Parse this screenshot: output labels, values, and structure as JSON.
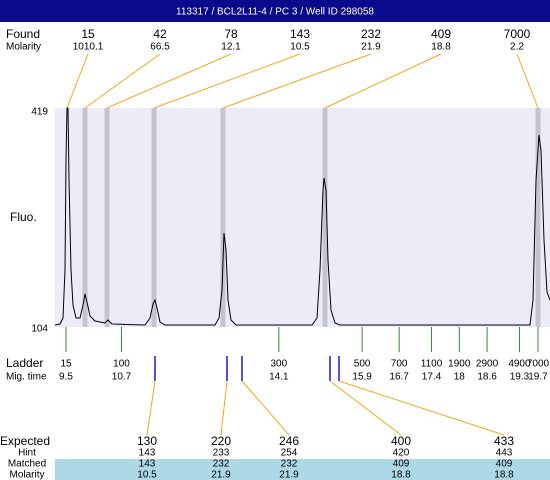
{
  "header": {
    "title": "113317 / BCL2L11-4 / PC 3 / Well ID 298058"
  },
  "found": {
    "label": "Found",
    "molarity_label": "Molarity",
    "peaks": [
      {
        "size": 15,
        "molarity": 1010.1
      },
      {
        "size": 42,
        "molarity": 66.5
      },
      {
        "size": 78,
        "molarity": 12.1
      },
      {
        "size": 143,
        "molarity": 10.5
      },
      {
        "size": 232,
        "molarity": 21.9
      },
      {
        "size": 409,
        "molarity": 18.8
      },
      {
        "size": 7000,
        "molarity": 2.2
      }
    ]
  },
  "plot": {
    "y_label": "Fluo.",
    "y_max": 419,
    "y_min": 104
  },
  "ladder": {
    "label": "Ladder",
    "time_label": "Mig. time",
    "items": [
      {
        "size": 15,
        "time": 9.5
      },
      {
        "size": 100,
        "time": 10.7
      },
      {
        "size": 300,
        "time": 14.1
      },
      {
        "size": 500,
        "time": 15.9
      },
      {
        "size": 700,
        "time": 16.7
      },
      {
        "size": 1100,
        "time": 17.4
      },
      {
        "size": 1900,
        "time": 18
      },
      {
        "size": 2900,
        "time": 18.6
      },
      {
        "size": 4900,
        "time": 19.3
      },
      {
        "size": 7000,
        "time": 19.7
      }
    ]
  },
  "expected": {
    "labels": {
      "expected": "Expected",
      "hint": "Hint",
      "matched": "Matched",
      "molarity": "Molarity"
    },
    "items": [
      {
        "expected": 130,
        "hint": 143,
        "matched": 143,
        "molarity": 10.5
      },
      {
        "expected": 220,
        "hint": 233,
        "matched": 232,
        "molarity": 21.9
      },
      {
        "expected": 246,
        "hint": 254,
        "matched": 232,
        "molarity": 21.9
      },
      {
        "expected": 400,
        "hint": 420,
        "matched": 409,
        "molarity": 18.8
      },
      {
        "expected": 433,
        "hint": 443,
        "matched": 409,
        "molarity": 18.8
      }
    ]
  }
}
